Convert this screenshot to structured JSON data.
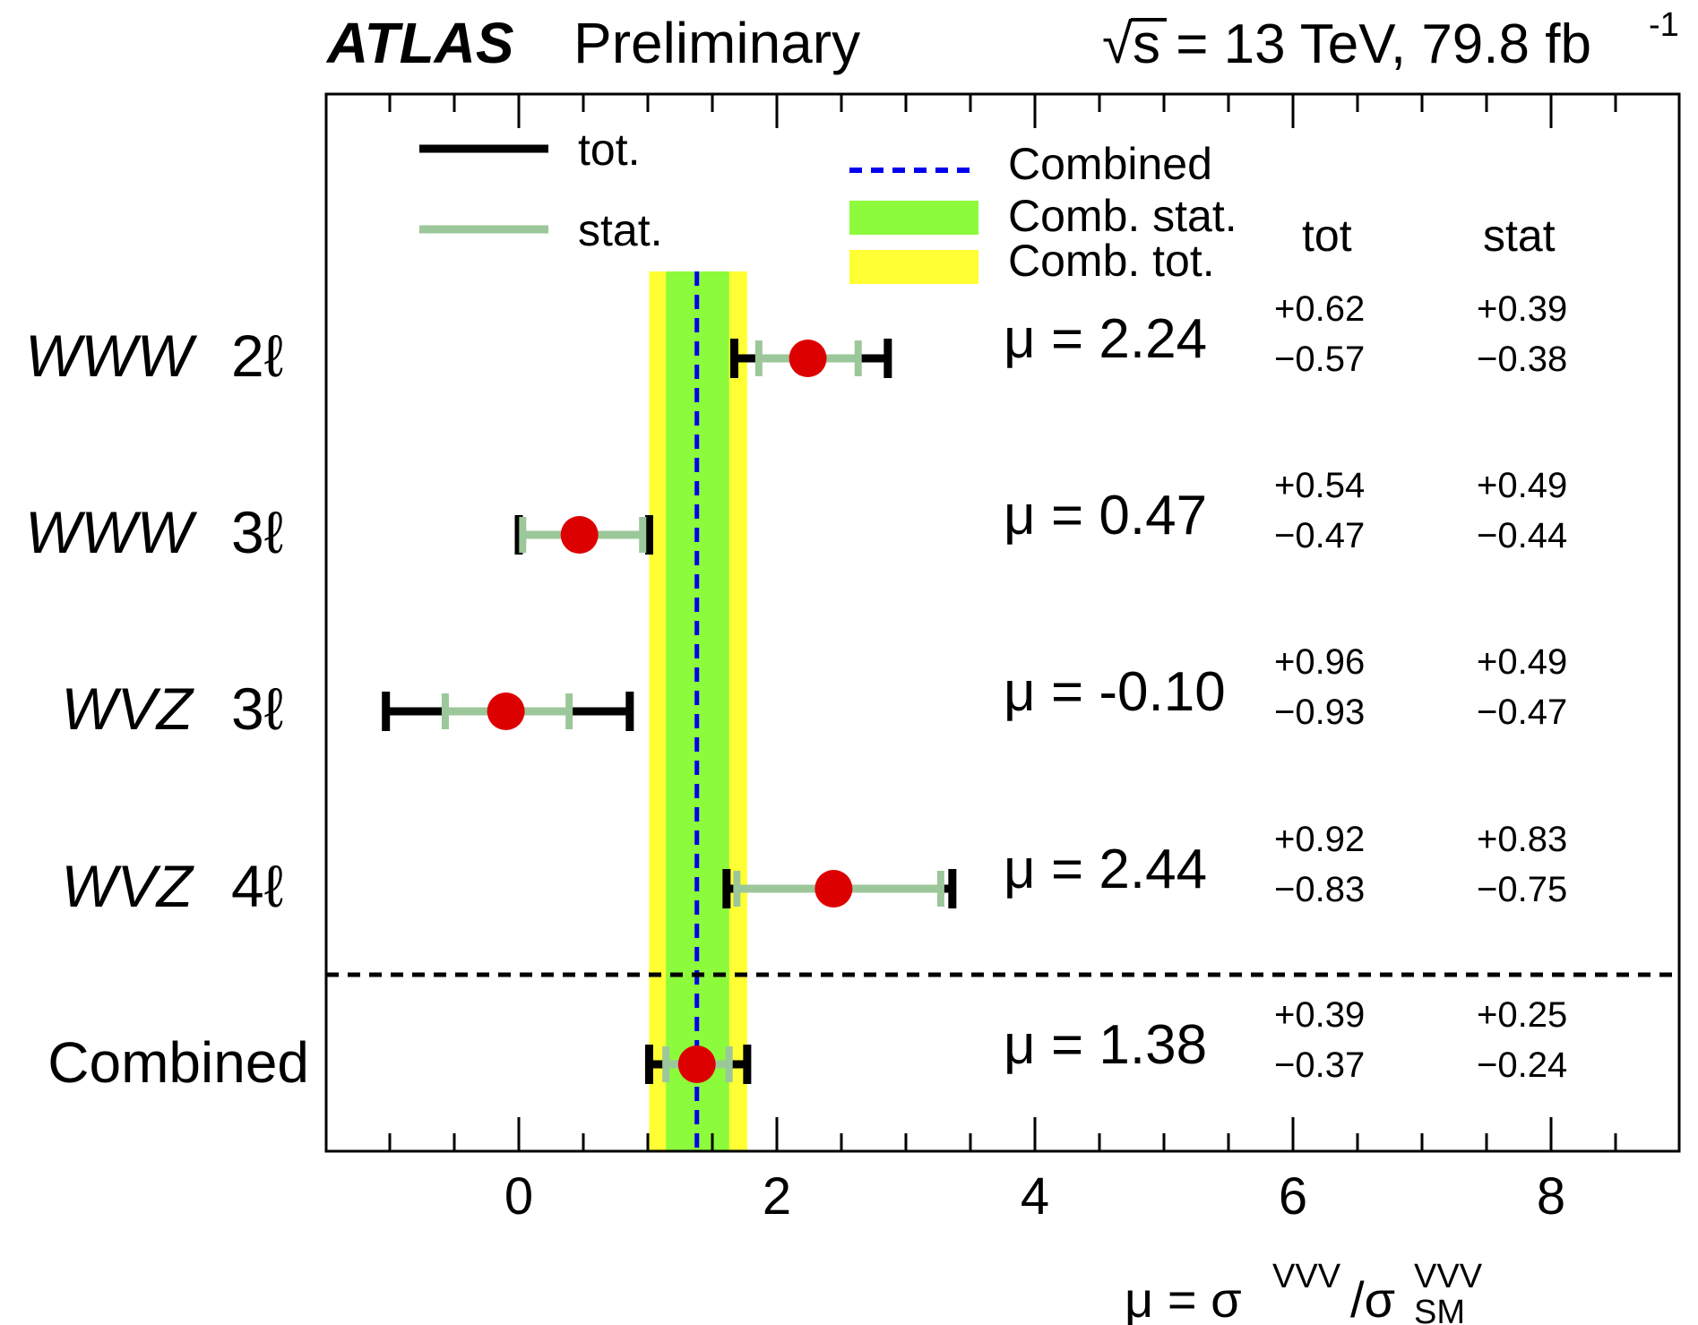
{
  "header": {
    "brand": "ATLAS",
    "status": "Preliminary",
    "sqrt_symbol": "√",
    "energy_text": "s = 13 TeV, 79.8 fb",
    "lumi_exponent": "-1"
  },
  "legend": {
    "tot_label": "tot.",
    "stat_label": "stat.",
    "combined_label": "Combined",
    "comb_stat_label": "Comb. stat.",
    "comb_tot_label": "Comb. tot."
  },
  "columns": {
    "tot": "tot",
    "stat": "stat"
  },
  "colors": {
    "tot_bar": "#000000",
    "stat_bar": "#9cc79a",
    "marker": "#dd0000",
    "combined_line": "#0000ee",
    "comb_stat_band": "#8cfb3c",
    "comb_tot_band": "#ffff33"
  },
  "xaxis": {
    "label_mu": "μ = σ",
    "label_sup1": "VVV",
    "label_slash": "/σ",
    "label_sup2": "VVV",
    "label_sub2": "SM"
  },
  "chart_data": {
    "type": "scatter",
    "orientation": "horizontal",
    "xlim": [
      -1.5,
      9.0
    ],
    "x_ticks": [
      0,
      2,
      4,
      6,
      8
    ],
    "x_tick_labels": [
      "0",
      "2",
      "4",
      "6",
      "8"
    ],
    "grid": false,
    "legend_position": "top-left",
    "xlabel": "μ = σVVV/σVVVSM",
    "combined": {
      "value": 1.38,
      "stat_up": 0.25,
      "stat_down": 0.24,
      "tot_up": 0.39,
      "tot_down": 0.37
    },
    "rows": [
      {
        "label_main": "WWW",
        "label_lep": "2ℓ",
        "mu_text": "μ = 2.24",
        "value": 2.24,
        "tot_up": 0.62,
        "tot_down": 0.57,
        "stat_up": 0.39,
        "stat_down": 0.38,
        "tot_up_text": "+0.62",
        "tot_down_text": "−0.57",
        "stat_up_text": "+0.39",
        "stat_down_text": "−0.38"
      },
      {
        "label_main": "WWW",
        "label_lep": "3ℓ",
        "mu_text": "μ = 0.47",
        "value": 0.47,
        "tot_up": 0.54,
        "tot_down": 0.47,
        "stat_up": 0.49,
        "stat_down": 0.44,
        "tot_up_text": "+0.54",
        "tot_down_text": "−0.47",
        "stat_up_text": "+0.49",
        "stat_down_text": "−0.44"
      },
      {
        "label_main": "WVZ",
        "label_lep": "3ℓ",
        "mu_text": "μ = -0.10",
        "value": -0.1,
        "tot_up": 0.96,
        "tot_down": 0.93,
        "stat_up": 0.49,
        "stat_down": 0.47,
        "tot_up_text": "+0.96",
        "tot_down_text": "−0.93",
        "stat_up_text": "+0.49",
        "stat_down_text": "−0.47"
      },
      {
        "label_main": "WVZ",
        "label_lep": "4ℓ",
        "mu_text": "μ = 2.44",
        "value": 2.44,
        "tot_up": 0.92,
        "tot_down": 0.83,
        "stat_up": 0.83,
        "stat_down": 0.75,
        "tot_up_text": "+0.92",
        "tot_down_text": "−0.83",
        "stat_up_text": "+0.83",
        "stat_down_text": "−0.75"
      },
      {
        "label_main": "Combined",
        "label_lep": "",
        "mu_text": "μ = 1.38",
        "value": 1.38,
        "tot_up": 0.39,
        "tot_down": 0.37,
        "stat_up": 0.25,
        "stat_down": 0.24,
        "tot_up_text": "+0.39",
        "tot_down_text": "−0.37",
        "stat_up_text": "+0.25",
        "stat_down_text": "−0.24"
      }
    ]
  }
}
